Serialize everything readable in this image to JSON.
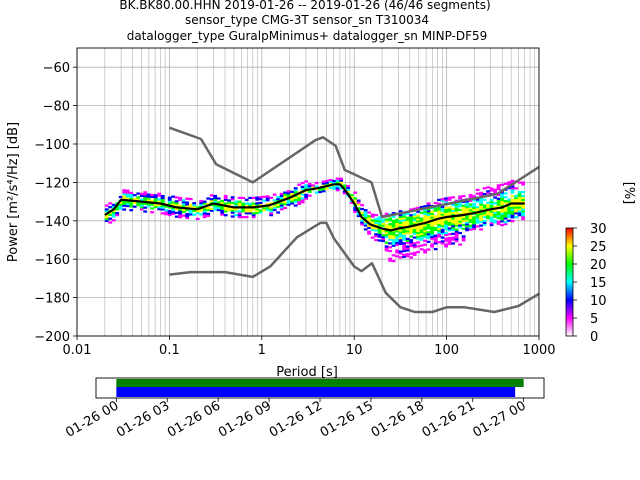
{
  "title_lines": [
    "BK.BK80.00.HHN   2019-01-26 -- 2019-01-26  (46/46 segments)",
    "sensor_type CMG-3T sensor_sn T310034",
    "datalogger_type GuralpMinimus+ datalogger_sn MINP-DF59"
  ],
  "chart_data": {
    "type": "heatmap",
    "title": "BK.BK80.00.HHN   2019-01-26 -- 2019-01-26  (46/46 segments)",
    "xlabel": "Period [s]",
    "ylabel": "Power [m²/s⁴/Hz] [dB]",
    "xscale": "log",
    "xlim": [
      0.01,
      1000
    ],
    "ylim": [
      -200,
      -50
    ],
    "grid": true,
    "xticks": [
      0.01,
      0.1,
      1,
      10,
      100,
      1000
    ],
    "xtick_labels": [
      "0.01",
      "0.1",
      "1",
      "10",
      "100",
      "1000"
    ],
    "yticks": [
      -200,
      -180,
      -160,
      -140,
      -120,
      -100,
      -80,
      -60
    ],
    "ytick_labels": [
      "−200",
      "−180",
      "−160",
      "−140",
      "−120",
      "−100",
      "−80",
      "−60"
    ],
    "series": [
      {
        "role": "psd-mean",
        "color": "#000000",
        "x": [
          0.02,
          0.025,
          0.03,
          0.05,
          0.08,
          0.12,
          0.2,
          0.3,
          0.5,
          0.8,
          1.2,
          2,
          3,
          4,
          5,
          6,
          7,
          8,
          10,
          12,
          15,
          20,
          25,
          30,
          40,
          60,
          80,
          100,
          150,
          200,
          300,
          400,
          500,
          700
        ],
        "y": [
          -137,
          -134,
          -129,
          -130,
          -131,
          -133,
          -134,
          -131,
          -133,
          -133,
          -132,
          -128,
          -124,
          -123,
          -122,
          -121,
          -121,
          -124,
          -131,
          -138,
          -142,
          -144,
          -145,
          -144,
          -143,
          -141,
          -139,
          -138,
          -137,
          -136,
          -134,
          -133,
          -131,
          -131
        ]
      },
      {
        "role": "nhnm",
        "color": "#666666",
        "x": [
          0.1,
          0.22,
          0.32,
          0.8,
          3.8,
          4.6,
          6.3,
          7.9,
          15.4,
          20,
          354.8,
          1000
        ],
        "y": [
          -91.5,
          -97.4,
          -110.5,
          -120,
          -98,
          -96.5,
          -101,
          -113.5,
          -120,
          -138,
          -126,
          -112
        ]
      },
      {
        "role": "nlnm",
        "color": "#666666",
        "x": [
          0.1,
          0.17,
          0.4,
          0.8,
          1.24,
          2.4,
          4.3,
          5,
          6,
          10,
          12,
          15.6,
          21.9,
          31.6,
          45,
          70,
          101,
          154,
          328,
          600,
          1000
        ],
        "y": [
          -168,
          -166.7,
          -166.7,
          -169.2,
          -163.7,
          -148.6,
          -141.1,
          -141.1,
          -149,
          -163.8,
          -166.2,
          -162.1,
          -177.5,
          -185,
          -187.5,
          -187.5,
          -185,
          -185,
          -187.5,
          -184.4,
          -178
        ]
      }
    ],
    "colorbar": {
      "label": "[%]",
      "min": 0,
      "max": 30,
      "ticks": [
        0,
        5,
        10,
        15,
        20,
        25,
        30
      ],
      "colors": [
        "#ffffff",
        "#ff00ff",
        "#0000ff",
        "#00ffff",
        "#00ff00",
        "#ffff00",
        "#ff0000"
      ]
    },
    "timeline": {
      "ticks": [
        "01-26 00",
        "01-26 03",
        "01-26 06",
        "01-26 09",
        "01-26 12",
        "01-26 15",
        "01-26 18",
        "01-26 21",
        "01-27 00"
      ],
      "tick_hours": [
        0,
        3,
        6,
        9,
        12,
        15,
        18,
        21,
        24
      ],
      "xlim_hours": [
        -1.2,
        25.2
      ],
      "coverage_color": "#008000",
      "used_color": "#0000ff",
      "coverage_range_hours": [
        0,
        24
      ],
      "used_range_hours": [
        0,
        23.5
      ]
    }
  }
}
